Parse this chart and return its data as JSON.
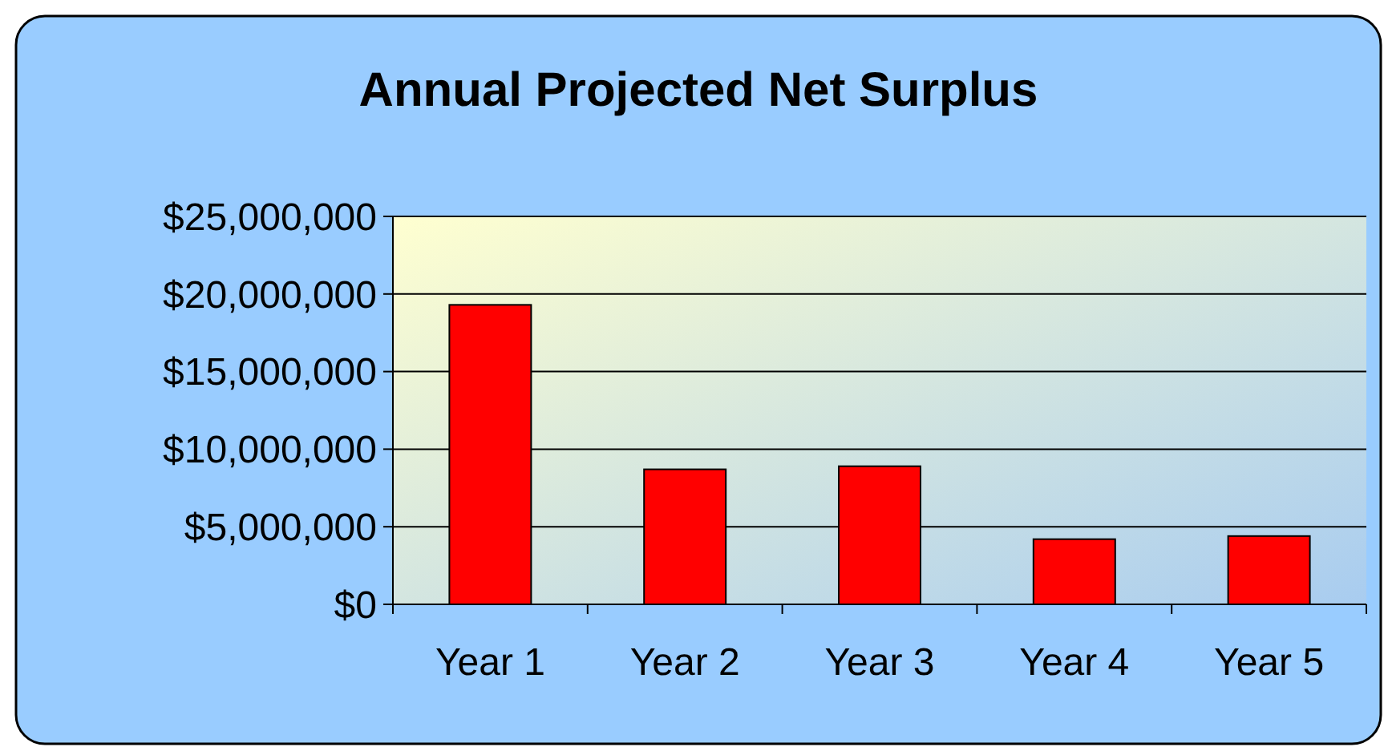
{
  "chart_data": {
    "type": "bar",
    "title": "Annual Projected Net Surplus",
    "categories": [
      "Year 1",
      "Year 2",
      "Year 3",
      "Year 4",
      "Year 5"
    ],
    "values": [
      19300000,
      8700000,
      8900000,
      4200000,
      4400000
    ],
    "color": "#ff0000",
    "ylim": [
      0,
      25000000
    ],
    "yticks": [
      {
        "value": 0,
        "label": "$0"
      },
      {
        "value": 5000000,
        "label": "$5,000,000"
      },
      {
        "value": 10000000,
        "label": "$10,000,000"
      },
      {
        "value": 15000000,
        "label": "$15,000,000"
      },
      {
        "value": 20000000,
        "label": "$20,000,000"
      },
      {
        "value": 25000000,
        "label": "$25,000,000"
      }
    ],
    "grid": "y"
  }
}
